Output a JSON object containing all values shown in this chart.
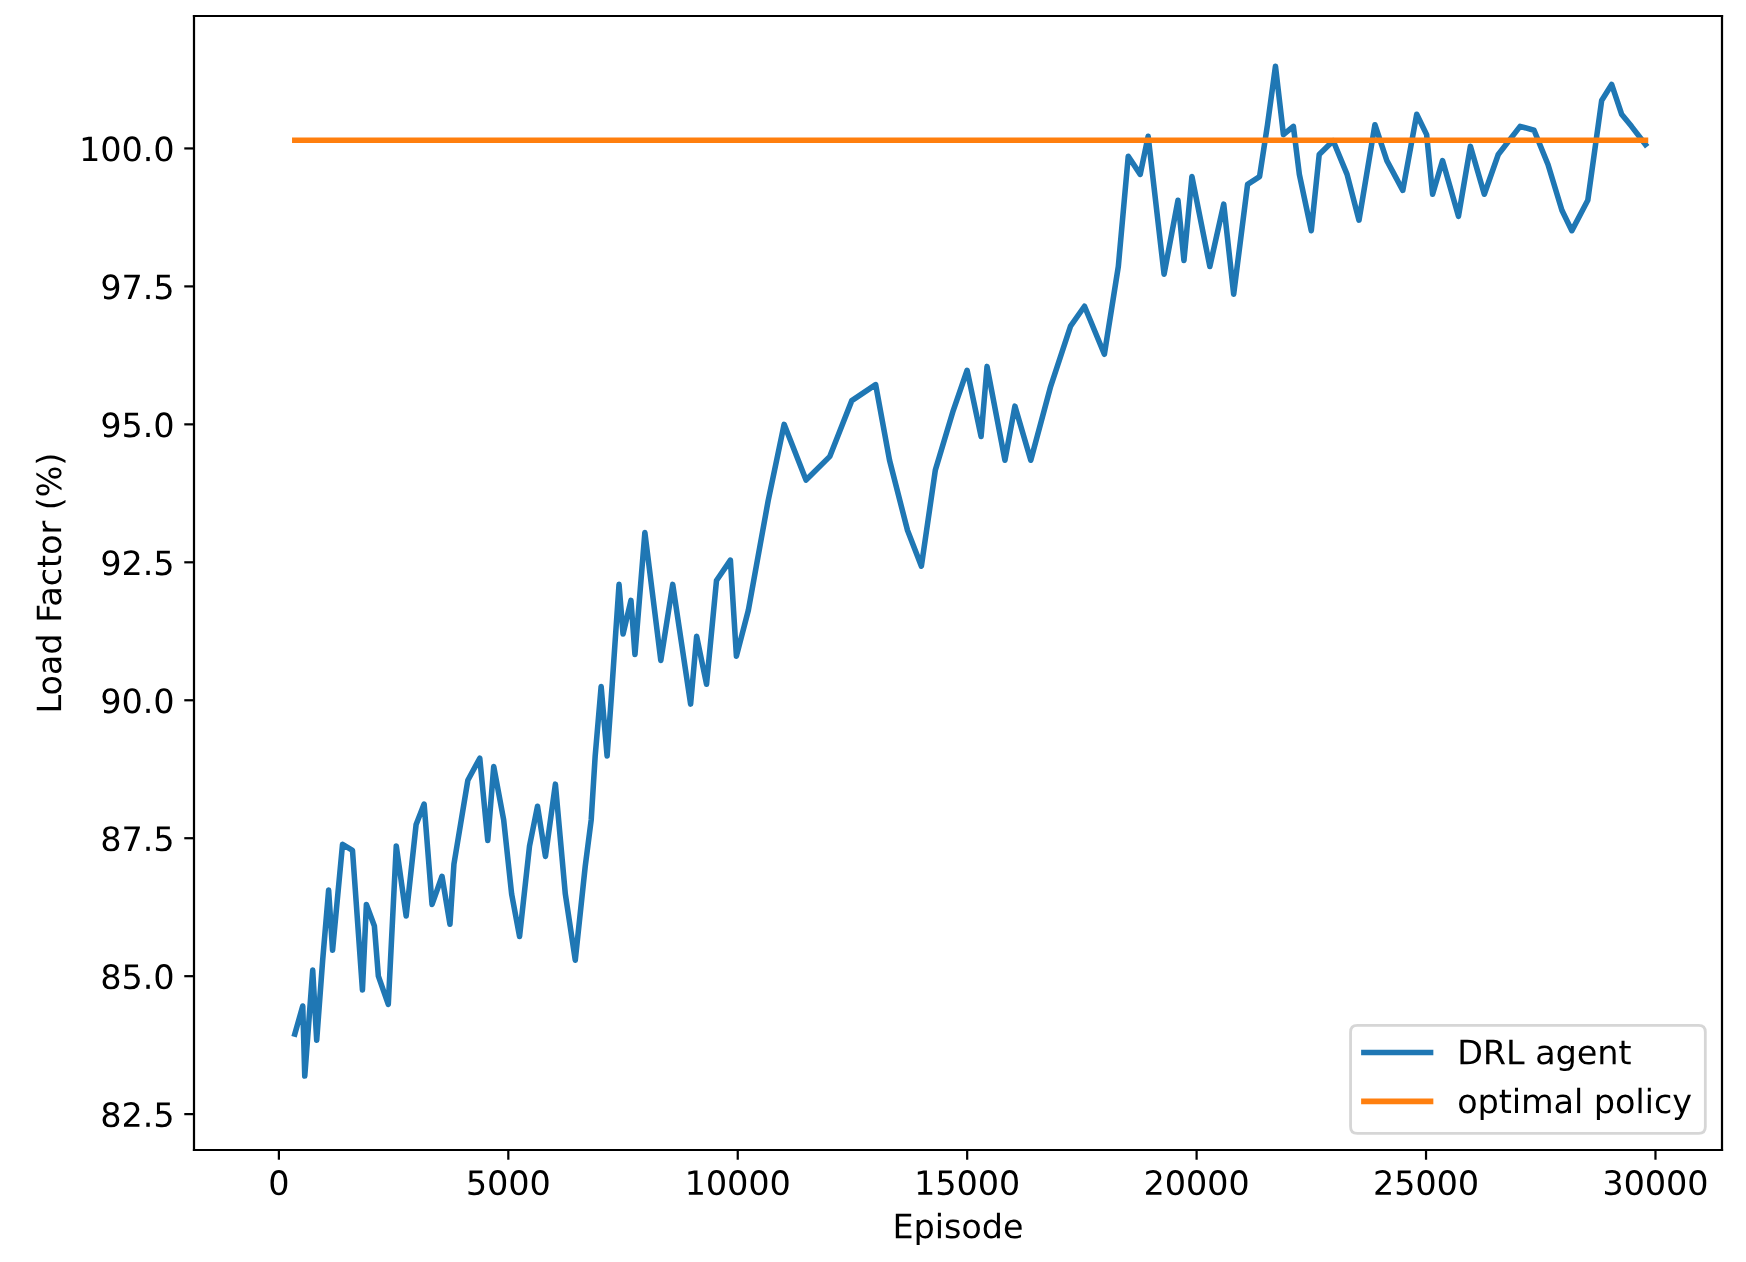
{
  "chart_data": {
    "type": "line",
    "xlabel": "Episode",
    "ylabel": "Load Factor (%)",
    "xlim": [
      -1850,
      31450
    ],
    "ylim": [
      81.85,
      102.4
    ],
    "xticks": [
      0,
      5000,
      10000,
      15000,
      20000,
      25000,
      30000
    ],
    "yticks": [
      {
        "value": 82.5,
        "label": "82.5"
      },
      {
        "value": 85,
        "label": "85.0"
      },
      {
        "value": 87.5,
        "label": "87.5"
      },
      {
        "value": 90,
        "label": "90.0"
      },
      {
        "value": 92.5,
        "label": "92.5"
      },
      {
        "value": 95,
        "label": "95.0"
      },
      {
        "value": 97.5,
        "label": "97.5"
      },
      {
        "value": 100,
        "label": "100.0"
      }
    ],
    "legend": "lower right",
    "grid": false,
    "series": [
      {
        "name": "DRL agent",
        "color": "#1f77b4",
        "x": [
          347,
          520,
          564,
          737,
          824,
          954,
          1084,
          1170,
          1387,
          1604,
          1821,
          1907,
          2081,
          2168,
          2384,
          2558,
          2774,
          2991,
          3165,
          3338,
          3555,
          3728,
          3815,
          4118,
          4378,
          4552,
          4682,
          4899,
          5072,
          5245,
          5462,
          5636,
          5809,
          6026,
          6242,
          6459,
          6676,
          6806,
          6893,
          7023,
          7153,
          7240,
          7413,
          7500,
          7673,
          7760,
          7976,
          8323,
          8583,
          8973,
          9104,
          9320,
          9537,
          9840,
          9971,
          10231,
          10404,
          10664,
          11011,
          11488,
          12008,
          12485,
          13005,
          13308,
          13699,
          14002,
          14306,
          14696,
          14999,
          15303,
          15433,
          15823,
          16040,
          16386,
          16820,
          17253,
          17557,
          17990,
          18294,
          18510,
          18771,
          18944,
          19291,
          19594,
          19724,
          19898,
          20288,
          20591,
          20808,
          21111,
          21372,
          21545,
          21719,
          21892,
          22109,
          22239,
          22499,
          22672,
          22976,
          23279,
          23539,
          23886,
          24146,
          24493,
          24797,
          25013,
          25143,
          25360,
          25707,
          25967,
          26270,
          26574,
          27050,
          27354,
          27658,
          27961,
          28178,
          28525,
          28828,
          29045,
          29262,
          29478,
          29782
        ],
        "values": [
          83.95,
          84.46,
          83.19,
          85.11,
          83.84,
          85.29,
          86.56,
          85.47,
          87.39,
          87.28,
          84.75,
          86.3,
          85.91,
          85.0,
          84.49,
          87.36,
          86.09,
          87.75,
          88.12,
          86.3,
          86.81,
          85.94,
          87.03,
          88.55,
          88.95,
          87.46,
          88.8,
          87.83,
          86.49,
          85.72,
          87.36,
          88.08,
          87.17,
          88.48,
          86.49,
          85.29,
          86.99,
          87.83,
          88.99,
          90.25,
          88.99,
          90.0,
          92.1,
          91.2,
          91.81,
          90.83,
          93.04,
          90.72,
          92.1,
          89.93,
          91.16,
          90.29,
          92.17,
          92.54,
          90.8,
          91.63,
          92.43,
          93.62,
          95.0,
          93.99,
          94.42,
          95.43,
          95.72,
          94.35,
          93.08,
          92.43,
          94.17,
          95.25,
          95.98,
          94.78,
          96.05,
          94.35,
          95.33,
          94.35,
          95.69,
          96.78,
          97.14,
          96.27,
          97.86,
          99.86,
          99.53,
          100.22,
          97.72,
          99.06,
          97.97,
          99.49,
          97.86,
          98.99,
          97.36,
          99.35,
          99.49,
          100.43,
          101.49,
          100.25,
          100.4,
          99.53,
          98.51,
          99.89,
          100.14,
          99.53,
          98.7,
          100.43,
          99.78,
          99.24,
          100.62,
          100.25,
          99.17,
          99.78,
          98.77,
          100.04,
          99.17,
          99.89,
          100.4,
          100.33,
          99.71,
          98.88,
          98.51,
          99.06,
          100.87,
          101.16,
          100.62,
          100.4,
          100.07
        ]
      },
      {
        "name": "optimal policy",
        "color": "#ff7f0e",
        "x": [
          347,
          29782
        ],
        "values": [
          100.15,
          100.15
        ]
      }
    ]
  }
}
